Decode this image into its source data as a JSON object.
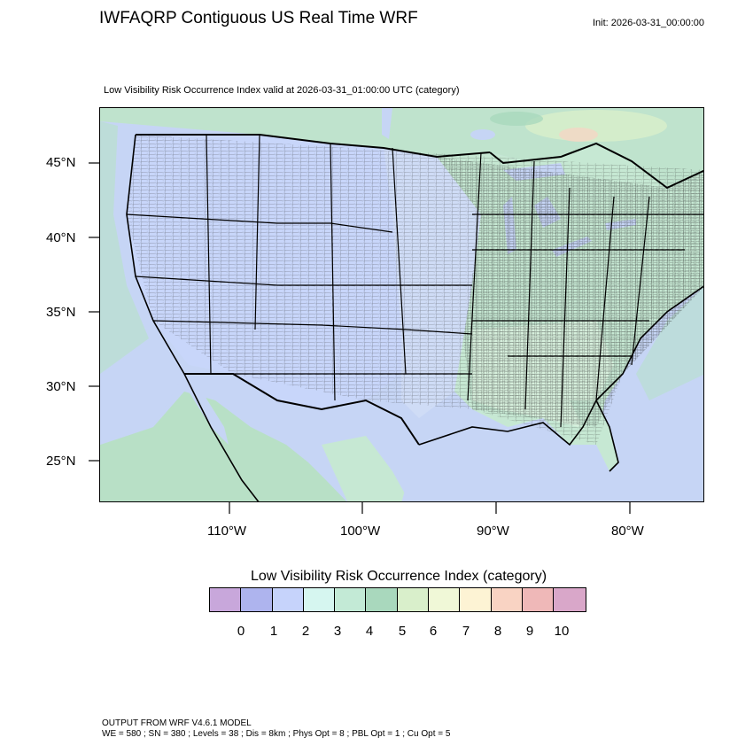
{
  "header": {
    "title": "IWFAQRP Contiguous US Real Time WRF",
    "init": "Init: 2026-03-31_00:00:00"
  },
  "map": {
    "subtitle": "Low Visibility Risk Occurrence Index valid at 2026-03-31_01:00:00 UTC   (category)",
    "latitude_labels": [
      "45°N",
      "40°N",
      "35°N",
      "30°N",
      "25°N"
    ],
    "longitude_labels": [
      "110°W",
      "100°W",
      "90°W",
      "80°W"
    ],
    "colors": {
      "ocean": "#c6d5f5",
      "west_land": "#c8d6fa",
      "central_land": "#d3eadf",
      "east_land": "#c6e8d3",
      "canada": "#bfe3cd",
      "mexico": "#b8e0c6",
      "borders": "#000000",
      "counties": "#2b2b2b"
    }
  },
  "legend": {
    "title": "Low Visibility Risk Occurrence Index  (category)",
    "colors": [
      "#c8a7db",
      "#aeb4ee",
      "#c6d3fb",
      "#d6f6f0",
      "#c3ead6",
      "#a9d8bd",
      "#d9efcb",
      "#f0f8d7",
      "#fdf3d4",
      "#f9d3c3",
      "#efb8b8",
      "#d9a7c9"
    ],
    "labels": [
      "0",
      "1",
      "2",
      "3",
      "4",
      "5",
      "6",
      "7",
      "8",
      "9",
      "10"
    ]
  },
  "footer": {
    "line1": "OUTPUT FROM WRF V4.6.1 MODEL",
    "line2": "WE = 580 ; SN = 380 ; Levels = 38 ; Dis = 8km ; Phys Opt = 8 ; PBL Opt = 1 ; Cu Opt = 5"
  }
}
